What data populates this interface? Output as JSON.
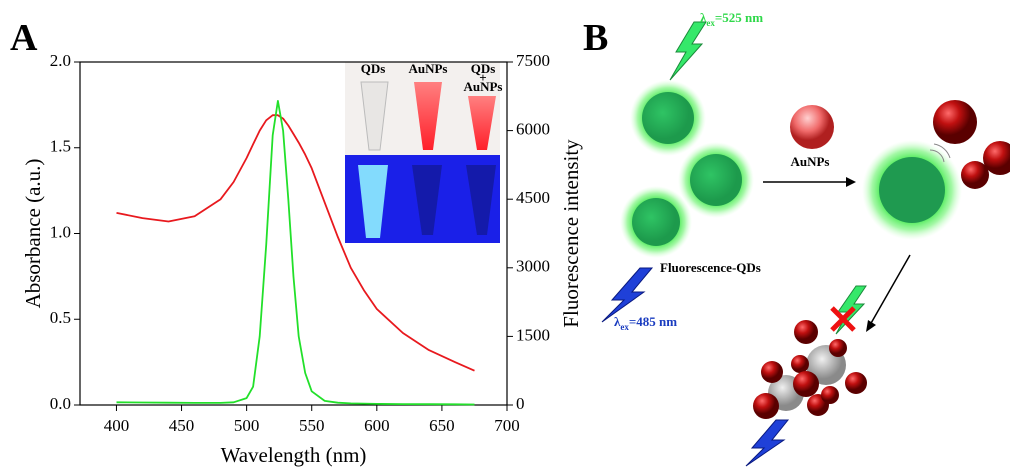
{
  "chart_data": {
    "type": "line",
    "x_label": "Wavelength (nm)",
    "y_label": "Absorbance (a.u.)",
    "y2_label": "Fluorescence intensity",
    "xlim": [
      372,
      700
    ],
    "xticks": [
      400,
      450,
      500,
      550,
      600,
      650,
      700
    ],
    "ylim": [
      0,
      2
    ],
    "yticks": [
      {
        "value": 0,
        "label": "0.0"
      },
      0.5,
      {
        "value": 1,
        "label": "1.0"
      },
      1.5,
      {
        "value": 2,
        "label": "2.0"
      }
    ],
    "y2lim": [
      0,
      7500
    ],
    "y2ticks": [
      0,
      1500,
      3000,
      4500,
      6000,
      7500
    ],
    "x": [
      400,
      420,
      440,
      460,
      480,
      490,
      500,
      505,
      510,
      515,
      520,
      524,
      528,
      532,
      536,
      540,
      545,
      550,
      560,
      570,
      580,
      590,
      600,
      620,
      640,
      660,
      675
    ],
    "series": [
      {
        "color": "#e8191e",
        "values": [
          1.12,
          1.09,
          1.07,
          1.1,
          1.2,
          1.3,
          1.44,
          1.52,
          1.6,
          1.66,
          1.69,
          1.69,
          1.67,
          1.63,
          1.58,
          1.53,
          1.46,
          1.38,
          1.18,
          0.98,
          0.8,
          0.67,
          0.56,
          0.42,
          0.32,
          0.25,
          0.2
        ]
      },
      {
        "color": "#22e02a",
        "axis": "y2",
        "values": [
          60,
          55,
          50,
          45,
          45,
          60,
          150,
          400,
          1500,
          3500,
          5900,
          6650,
          6000,
          4500,
          2800,
          1500,
          700,
          300,
          90,
          50,
          35,
          30,
          25,
          20,
          18,
          15,
          10
        ]
      }
    ]
  },
  "panel_labels": [
    "A",
    "B"
  ],
  "inset": {
    "labels": [
      "QDs",
      "AuNPs"
    ],
    "combined": [
      "QDs",
      "+",
      "AuNPs"
    ]
  },
  "diagram": {
    "excitation_green": {
      "symbol": "λ",
      "subscript": "ex",
      "text": "=525 nm"
    },
    "excitation_blue": {
      "symbol": "λ",
      "subscript": "ex",
      "text": "=485 nm"
    },
    "qd_label": "Fluorescence-QDs",
    "aunp_label": "AuNPs"
  }
}
